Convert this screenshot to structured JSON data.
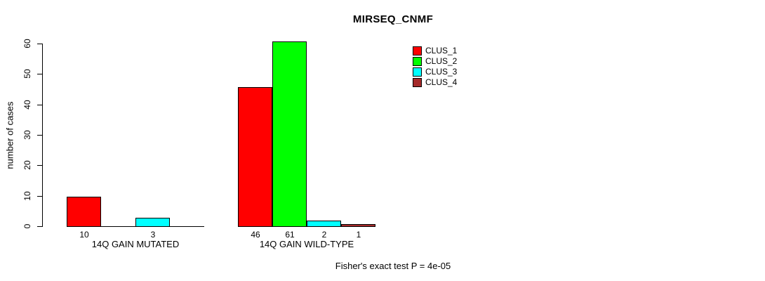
{
  "chart_data": {
    "type": "bar",
    "title": "MIRSEQ_CNMF",
    "ylabel": "number of cases",
    "ylim": [
      0,
      60
    ],
    "yticks": [
      0,
      10,
      20,
      30,
      40,
      50,
      60
    ],
    "categories": [
      "14Q GAIN MUTATED",
      "14Q GAIN WILD-TYPE"
    ],
    "series": [
      {
        "name": "CLUS_1",
        "color": "#ff0000",
        "values": [
          10,
          46
        ]
      },
      {
        "name": "CLUS_2",
        "color": "#00ff00",
        "values": [
          0,
          61
        ]
      },
      {
        "name": "CLUS_3",
        "color": "#00ffff",
        "values": [
          3,
          2
        ]
      },
      {
        "name": "CLUS_4",
        "color": "#a52a2a",
        "values": [
          0,
          1
        ]
      }
    ],
    "bar_value_labels": [
      "10",
      "3",
      "46",
      "61",
      "2",
      "1"
    ],
    "annotation": "Fisher's exact test P = 4e-05",
    "legend_position": "top-right",
    "grid": false,
    "background": "#ffffff"
  }
}
